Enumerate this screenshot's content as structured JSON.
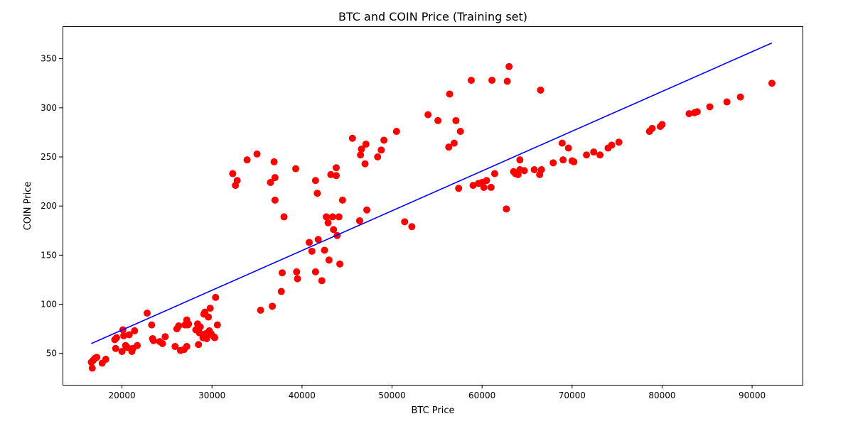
{
  "chart_data": {
    "type": "scatter",
    "title": "BTC and COIN Price (Training set)",
    "xlabel": "BTC Price",
    "ylabel": "COIN Price",
    "xlim": [
      13400,
      95600
    ],
    "ylim": [
      18,
      383
    ],
    "xticks": [
      20000,
      30000,
      40000,
      50000,
      60000,
      70000,
      80000,
      90000
    ],
    "yticks": [
      50,
      100,
      150,
      200,
      250,
      300,
      350
    ],
    "grid": false,
    "colors": {
      "points": "#ff0000",
      "line": "#0000ff"
    },
    "series": [
      {
        "type": "scatter",
        "points": [
          [
            16600,
            41
          ],
          [
            16700,
            35
          ],
          [
            16800,
            43
          ],
          [
            17000,
            45
          ],
          [
            17200,
            46
          ],
          [
            17800,
            40
          ],
          [
            18200,
            44
          ],
          [
            19200,
            64
          ],
          [
            19400,
            66
          ],
          [
            19300,
            55
          ],
          [
            20000,
            52
          ],
          [
            20100,
            74
          ],
          [
            20200,
            68
          ],
          [
            20400,
            58
          ],
          [
            20600,
            56
          ],
          [
            20800,
            69
          ],
          [
            21100,
            52
          ],
          [
            21200,
            55
          ],
          [
            21400,
            73
          ],
          [
            21700,
            58
          ],
          [
            22800,
            91
          ],
          [
            23300,
            79
          ],
          [
            23400,
            65
          ],
          [
            23500,
            63
          ],
          [
            24200,
            62
          ],
          [
            24500,
            60
          ],
          [
            24800,
            67
          ],
          [
            25900,
            57
          ],
          [
            26100,
            75
          ],
          [
            26300,
            78
          ],
          [
            26500,
            53
          ],
          [
            26900,
            54
          ],
          [
            27000,
            79
          ],
          [
            27200,
            84
          ],
          [
            27200,
            57
          ],
          [
            27300,
            79
          ],
          [
            27400,
            80
          ],
          [
            28200,
            74
          ],
          [
            28400,
            80
          ],
          [
            28500,
            76
          ],
          [
            28600,
            71
          ],
          [
            28700,
            77
          ],
          [
            28500,
            59
          ],
          [
            29000,
            66
          ],
          [
            29100,
            90
          ],
          [
            29200,
            92
          ],
          [
            29300,
            70
          ],
          [
            29400,
            65
          ],
          [
            29600,
            87
          ],
          [
            29700,
            73
          ],
          [
            29800,
            96
          ],
          [
            29900,
            70
          ],
          [
            30200,
            67
          ],
          [
            30300,
            66
          ],
          [
            30400,
            107
          ],
          [
            30600,
            79
          ],
          [
            32300,
            233
          ],
          [
            32600,
            221
          ],
          [
            32800,
            226
          ],
          [
            33900,
            247
          ],
          [
            35000,
            253
          ],
          [
            35400,
            94
          ],
          [
            36500,
            224
          ],
          [
            36700,
            98
          ],
          [
            36900,
            245
          ],
          [
            37000,
            206
          ],
          [
            37000,
            229
          ],
          [
            37700,
            113
          ],
          [
            37800,
            132
          ],
          [
            38000,
            189
          ],
          [
            39300,
            238
          ],
          [
            39400,
            133
          ],
          [
            39500,
            126
          ],
          [
            40800,
            163
          ],
          [
            41100,
            154
          ],
          [
            41500,
            226
          ],
          [
            41500,
            133
          ],
          [
            41700,
            213
          ],
          [
            41800,
            166
          ],
          [
            42200,
            124
          ],
          [
            42500,
            155
          ],
          [
            42700,
            189
          ],
          [
            42900,
            183
          ],
          [
            43000,
            145
          ],
          [
            43200,
            232
          ],
          [
            43400,
            189
          ],
          [
            43500,
            176
          ],
          [
            43800,
            239
          ],
          [
            43800,
            231
          ],
          [
            43900,
            170
          ],
          [
            44100,
            189
          ],
          [
            44200,
            141
          ],
          [
            44500,
            206
          ],
          [
            45600,
            269
          ],
          [
            46400,
            185
          ],
          [
            46500,
            252
          ],
          [
            46600,
            258
          ],
          [
            47000,
            243
          ],
          [
            47100,
            263
          ],
          [
            47200,
            196
          ],
          [
            48400,
            250
          ],
          [
            48800,
            257
          ],
          [
            49100,
            267
          ],
          [
            50500,
            276
          ],
          [
            51400,
            184
          ],
          [
            52200,
            179
          ],
          [
            54000,
            293
          ],
          [
            55100,
            287
          ],
          [
            56300,
            260
          ],
          [
            56400,
            314
          ],
          [
            56900,
            264
          ],
          [
            57100,
            287
          ],
          [
            57400,
            218
          ],
          [
            57600,
            276
          ],
          [
            58800,
            328
          ],
          [
            59000,
            221
          ],
          [
            59600,
            223
          ],
          [
            60000,
            224
          ],
          [
            60200,
            219
          ],
          [
            60500,
            226
          ],
          [
            61000,
            219
          ],
          [
            61100,
            328
          ],
          [
            61400,
            233
          ],
          [
            62700,
            197
          ],
          [
            62800,
            327
          ],
          [
            63000,
            342
          ],
          [
            63500,
            235
          ],
          [
            63700,
            233
          ],
          [
            64000,
            232
          ],
          [
            64200,
            237
          ],
          [
            64200,
            247
          ],
          [
            64700,
            236
          ],
          [
            65800,
            237
          ],
          [
            66400,
            232
          ],
          [
            66500,
            318
          ],
          [
            66600,
            237
          ],
          [
            67900,
            244
          ],
          [
            68900,
            264
          ],
          [
            69000,
            247
          ],
          [
            69600,
            259
          ],
          [
            70000,
            246
          ],
          [
            70200,
            245
          ],
          [
            71600,
            252
          ],
          [
            72400,
            255
          ],
          [
            73100,
            252
          ],
          [
            74000,
            259
          ],
          [
            74400,
            262
          ],
          [
            75200,
            265
          ],
          [
            78600,
            276
          ],
          [
            78900,
            279
          ],
          [
            79800,
            281
          ],
          [
            80000,
            283
          ],
          [
            83000,
            294
          ],
          [
            83600,
            295
          ],
          [
            83900,
            296
          ],
          [
            85300,
            301
          ],
          [
            87200,
            306
          ],
          [
            88700,
            311
          ],
          [
            92200,
            325
          ]
        ]
      },
      {
        "type": "line",
        "points": [
          [
            16600,
            60
          ],
          [
            92200,
            366
          ]
        ]
      }
    ]
  }
}
